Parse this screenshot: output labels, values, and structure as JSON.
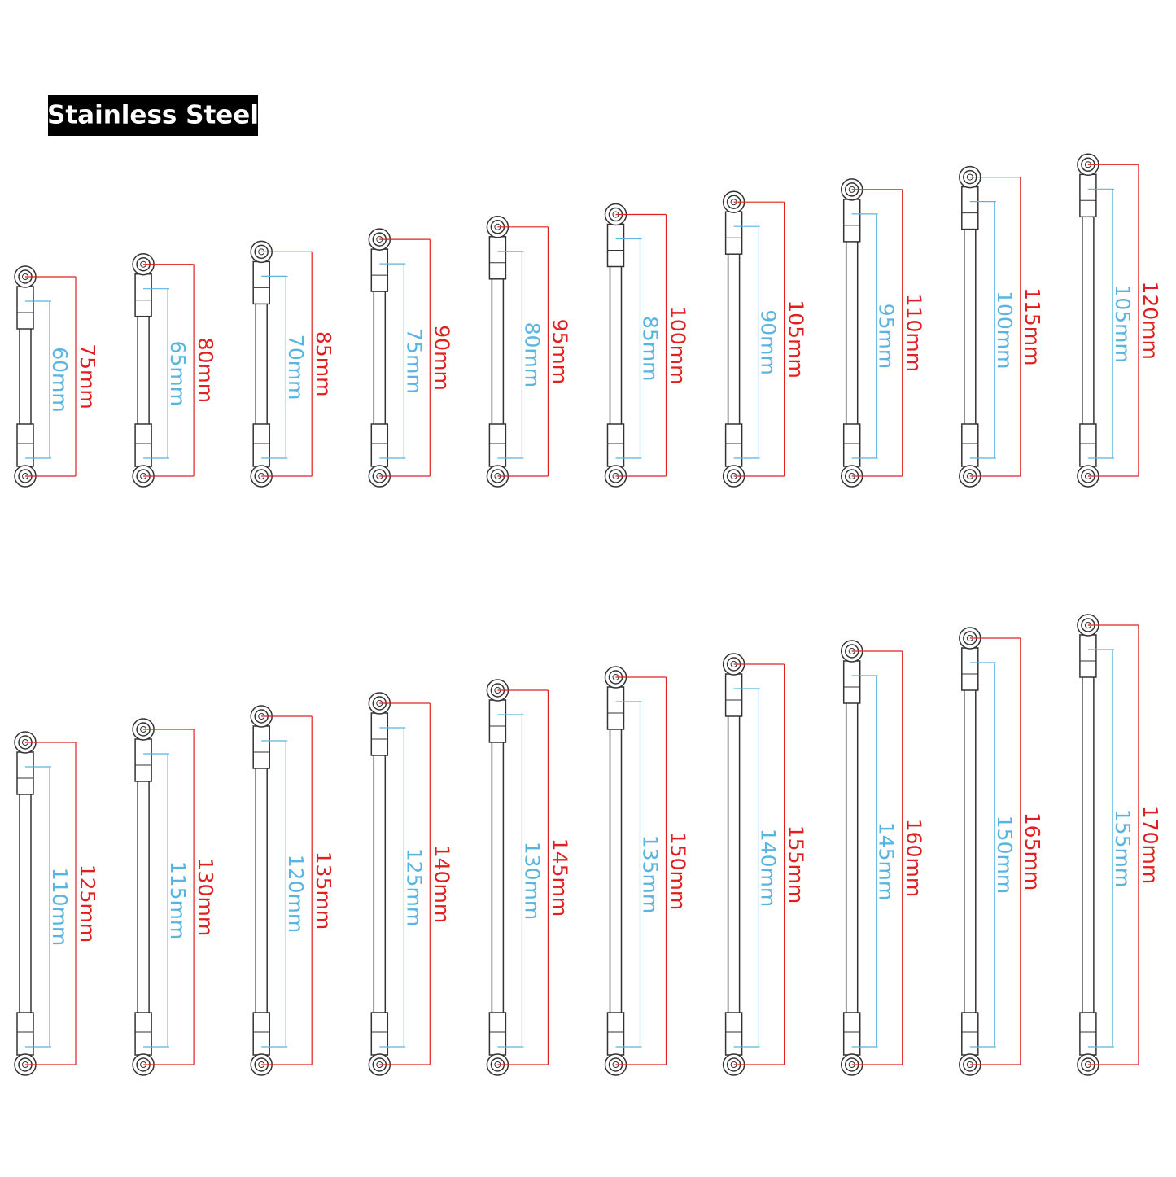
{
  "header": {
    "title": "Stainless Steel"
  },
  "rows": [
    {
      "items": [
        {
          "overall": "75mm",
          "inner": "60mm"
        },
        {
          "overall": "80mm",
          "inner": "65mm"
        },
        {
          "overall": "85mm",
          "inner": "70mm"
        },
        {
          "overall": "90mm",
          "inner": "75mm"
        },
        {
          "overall": "95mm",
          "inner": "80mm"
        },
        {
          "overall": "100mm",
          "inner": "85mm"
        },
        {
          "overall": "105mm",
          "inner": "90mm"
        },
        {
          "overall": "110mm",
          "inner": "95mm"
        },
        {
          "overall": "115mm",
          "inner": "100mm"
        },
        {
          "overall": "120mm",
          "inner": "105mm"
        }
      ]
    },
    {
      "items": [
        {
          "overall": "125mm",
          "inner": "110mm"
        },
        {
          "overall": "130mm",
          "inner": "115mm"
        },
        {
          "overall": "135mm",
          "inner": "120mm"
        },
        {
          "overall": "140mm",
          "inner": "125mm"
        },
        {
          "overall": "145mm",
          "inner": "130mm"
        },
        {
          "overall": "150mm",
          "inner": "135mm"
        },
        {
          "overall": "155mm",
          "inner": "140mm"
        },
        {
          "overall": "160mm",
          "inner": "145mm"
        },
        {
          "overall": "165mm",
          "inner": "150mm"
        },
        {
          "overall": "170mm",
          "inner": "155mm"
        }
      ]
    }
  ]
}
